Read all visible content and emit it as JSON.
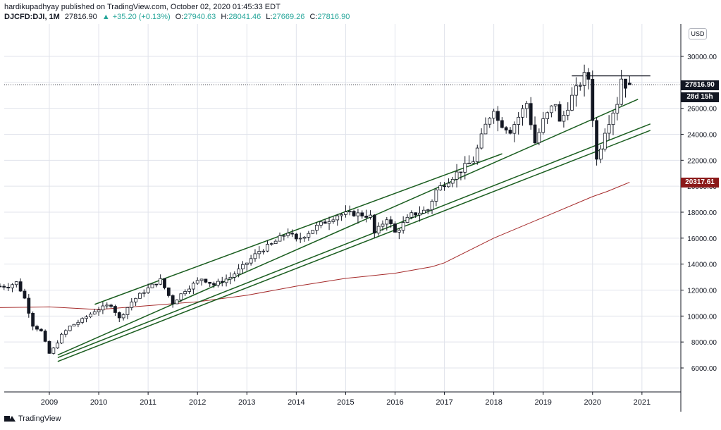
{
  "header": {
    "publisher": "hardikupadhyay",
    "published_text": "published on TradingView.com, October 02, 2020 01:45:33 EDT"
  },
  "ohlc": {
    "symbol": "DJCFD:DJI, 1M",
    "price": "27816.90",
    "change": "+35.20 (+0.13%)",
    "o_label": "O:",
    "o_value": "27940.63",
    "h_label": "H:",
    "h_value": "28041.46",
    "l_label": "L:",
    "l_value": "27669.26",
    "c_label": "C:",
    "c_value": "27816.90"
  },
  "axis": {
    "currency": "USD",
    "last_price_tag": "27816.90",
    "countdown_tag": "28d 15h",
    "ma_tag": "20317.61"
  },
  "footer": {
    "brand": "TradingView"
  },
  "colors": {
    "channel": "#1b5e20",
    "ma": "#a52a2a",
    "bull": "#ffffff",
    "bear": "#131722",
    "grid": "#e0e3eb"
  },
  "chart_data": {
    "type": "candlestick",
    "interval": "1M",
    "symbol": "DJCFD:DJI",
    "ylim": [
      4800,
      31500
    ],
    "y_ticks": [
      6000,
      8000,
      10000,
      12000,
      14000,
      16000,
      18000,
      20000,
      22000,
      24000,
      26000,
      28000,
      30000
    ],
    "y_tick_labels": [
      "6000.00",
      "8000.00",
      "10000.00",
      "12000.00",
      "14000.00",
      "16000.00",
      "18000.00",
      "20000.00",
      "22000.00",
      "24000.00",
      "26000.00",
      "28000.00",
      "30000.00"
    ],
    "x_ticks": [
      2009,
      2010,
      2011,
      2012,
      2013,
      2014,
      2015,
      2016,
      2017,
      2018,
      2019,
      2020,
      2021
    ],
    "x_tick_labels": [
      "2009",
      "2010",
      "2011",
      "2012",
      "2013",
      "2014",
      "2015",
      "2016",
      "2017",
      "2018",
      "2019",
      "2020",
      "2021"
    ],
    "last_price": 27816.9,
    "ma_value": 20317.61,
    "anchors": [
      [
        2008.25,
        12300
      ],
      [
        2008.42,
        12600
      ],
      [
        2008.58,
        11400
      ],
      [
        2008.75,
        9300
      ],
      [
        2008.92,
        8800
      ],
      [
        2009.08,
        7100
      ],
      [
        2009.17,
        7500
      ],
      [
        2009.33,
        8500
      ],
      [
        2009.5,
        9200
      ],
      [
        2009.75,
        9700
      ],
      [
        2010.0,
        10400
      ],
      [
        2010.33,
        10900
      ],
      [
        2010.5,
        9800
      ],
      [
        2010.75,
        11100
      ],
      [
        2011.0,
        11900
      ],
      [
        2011.33,
        12800
      ],
      [
        2011.58,
        11000
      ],
      [
        2011.83,
        12000
      ],
      [
        2012.17,
        12900
      ],
      [
        2012.42,
        12400
      ],
      [
        2012.75,
        13000
      ],
      [
        2013.0,
        13800
      ],
      [
        2013.33,
        15000
      ],
      [
        2013.58,
        15500
      ],
      [
        2013.92,
        16500
      ],
      [
        2014.08,
        15800
      ],
      [
        2014.5,
        16900
      ],
      [
        2014.92,
        17800
      ],
      [
        2015.25,
        17900
      ],
      [
        2015.58,
        17700
      ],
      [
        2015.67,
        16300
      ],
      [
        2015.92,
        17600
      ],
      [
        2016.08,
        16400
      ],
      [
        2016.42,
        17800
      ],
      [
        2016.75,
        18200
      ],
      [
        2016.92,
        19700
      ],
      [
        2017.33,
        21000
      ],
      [
        2017.67,
        22000
      ],
      [
        2017.92,
        24700
      ],
      [
        2018.08,
        26100
      ],
      [
        2018.17,
        25000
      ],
      [
        2018.42,
        24300
      ],
      [
        2018.75,
        26400
      ],
      [
        2018.92,
        23300
      ],
      [
        2019.08,
        25000
      ],
      [
        2019.33,
        26500
      ],
      [
        2019.42,
        24800
      ],
      [
        2019.67,
        26900
      ],
      [
        2019.92,
        28500
      ],
      [
        2020.0,
        28300
      ],
      [
        2020.08,
        25400
      ],
      [
        2020.17,
        21900
      ],
      [
        2020.33,
        24300
      ],
      [
        2020.5,
        25800
      ],
      [
        2020.58,
        26400
      ],
      [
        2020.67,
        28400
      ],
      [
        2020.75,
        27800
      ]
    ],
    "channel_lines": [
      {
        "name": "",
        "x": [
          2009.92,
          2018.17
        ],
        "y": [
          10900,
          22500
        ]
      },
      {
        "name": "",
        "x": [
          2009.17,
          2020.92
        ],
        "y": [
          7000,
          26700
        ]
      },
      {
        "name": "",
        "x": [
          2009.17,
          2021.17
        ],
        "y": [
          6800,
          24800
        ]
      },
      {
        "name": "",
        "x": [
          2009.17,
          2021.17
        ],
        "y": [
          6500,
          24300
        ]
      }
    ],
    "resistance_line": {
      "x": [
        2019.58,
        2021.17
      ],
      "y": [
        28500,
        28500
      ]
    },
    "moving_average": {
      "x": [
        2008.0,
        2009.0,
        2010.0,
        2011.0,
        2012.0,
        2013.0,
        2014.0,
        2015.0,
        2016.0,
        2016.75,
        2017.0,
        2018.0,
        2019.0,
        2020.0,
        2020.3,
        2020.75
      ],
      "y": [
        10650,
        10700,
        10500,
        10800,
        11100,
        11600,
        12300,
        12900,
        13300,
        13800,
        14100,
        16000,
        17600,
        19200,
        19600,
        20300
      ]
    }
  }
}
